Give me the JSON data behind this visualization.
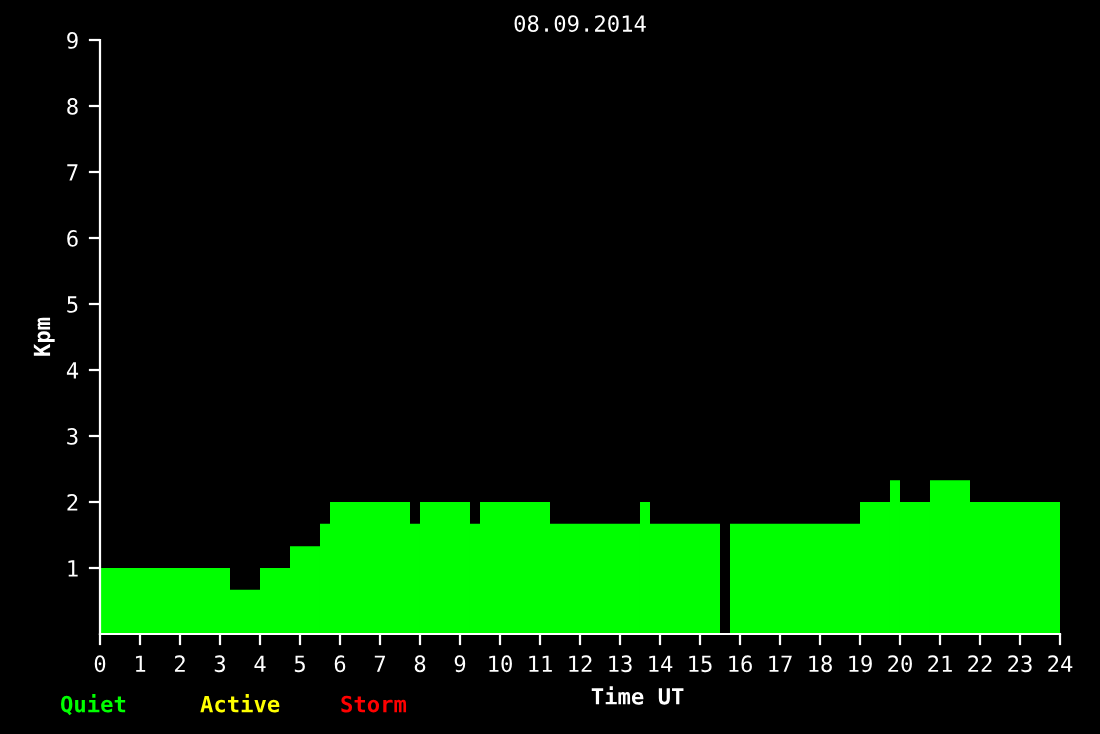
{
  "chart_data": {
    "type": "histogram",
    "title": "08.09.2014",
    "xlabel": "Time UT",
    "ylabel": "Kpm",
    "bins": [
      0,
      3.25,
      4,
      4.75,
      5.5,
      5.75,
      7.75,
      8,
      9.25,
      9.5,
      11.25,
      13.5,
      13.75,
      15.5,
      15.75,
      19,
      19.75,
      20,
      20.75,
      21.75,
      24
    ],
    "series": [
      {
        "name": "Quiet",
        "color": "#00ff00",
        "values": [
          1,
          0.67,
          1,
          1.33,
          1.67,
          2,
          1.67,
          2,
          1.67,
          2,
          1.67,
          2,
          1.67,
          null,
          1.67,
          2,
          2.33,
          2,
          2.33,
          2
        ]
      }
    ],
    "annotations": [
      "Active",
      "Storm"
    ],
    "xlim": [
      0,
      24
    ],
    "xticks": [
      0,
      1,
      2,
      3,
      4,
      5,
      6,
      7,
      8,
      9,
      10,
      11,
      12,
      13,
      14,
      15,
      16,
      17,
      18,
      19,
      20,
      21,
      22,
      23,
      24
    ],
    "ylim": [
      0,
      9
    ],
    "yticks": [
      1,
      2,
      3,
      4,
      5,
      6,
      7,
      8,
      9
    ],
    "grid": false,
    "legend": "bottom left"
  }
}
